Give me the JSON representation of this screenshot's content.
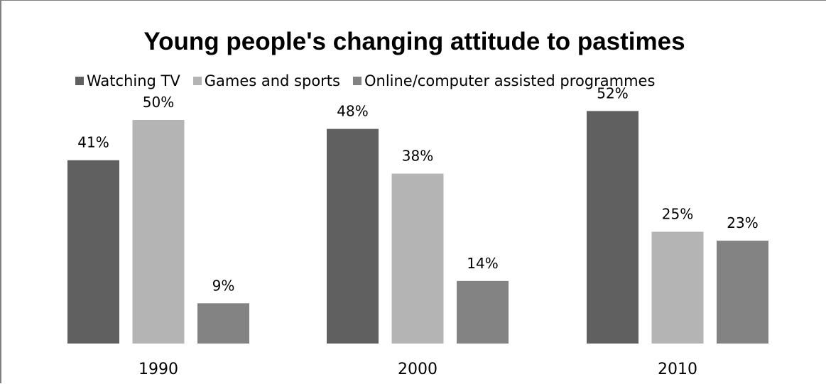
{
  "chart_data": {
    "type": "bar",
    "title": "Young people's changing attitude to pastimes",
    "categories": [
      "1990",
      "2000",
      "2010"
    ],
    "series": [
      {
        "name": "Watching TV",
        "values": [
          41,
          48,
          52
        ],
        "labels": [
          "41%",
          "48%",
          "52%"
        ],
        "color": "#606060"
      },
      {
        "name": "Games and sports",
        "values": [
          50,
          38,
          25
        ],
        "labels": [
          "50%",
          "38%",
          "25%"
        ],
        "color": "#b4b4b4"
      },
      {
        "name": "Online/computer assisted programmes",
        "values": [
          9,
          14,
          23
        ],
        "labels": [
          "9%",
          "14%",
          "23%"
        ],
        "color": "#838383"
      }
    ],
    "ylim": [
      0,
      52
    ],
    "grid": false,
    "legend_position": "top"
  }
}
